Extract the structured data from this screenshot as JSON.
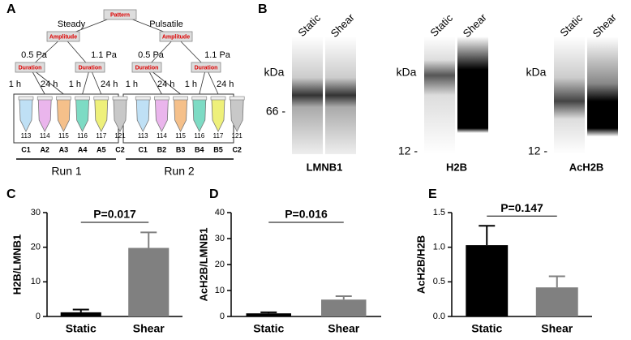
{
  "panels": [
    "A",
    "B",
    "C",
    "D",
    "E"
  ],
  "diagram": {
    "root": "Pattern",
    "branches": [
      "Steady",
      "Pulsatile"
    ],
    "amplitude": "Amplitude",
    "duration": "Duration",
    "pressures": [
      "0.5 Pa",
      "1.1 Pa",
      "0.5 Pa",
      "1.1 Pa"
    ],
    "times": [
      "1 h",
      "24 h",
      "1 h",
      "24 h",
      "1 h",
      "24 h",
      "1 h",
      "24 h"
    ],
    "tags": [
      "113",
      "114",
      "115",
      "116",
      "117",
      "121",
      "113",
      "114",
      "115",
      "116",
      "117",
      "121"
    ],
    "samples": [
      "C1",
      "A2",
      "A3",
      "A4",
      "A5",
      "C2",
      "C1",
      "B2",
      "B3",
      "B4",
      "B5",
      "C2"
    ],
    "runs": [
      "Run 1",
      "Run 2"
    ]
  },
  "blots": [
    {
      "name": "LMNB1",
      "lanes": [
        "Static",
        "Shear"
      ],
      "unit": "kDa",
      "marker": {
        "value": 66,
        "label": "66 -"
      }
    },
    {
      "name": "H2B",
      "lanes": [
        "Static",
        "Shear"
      ],
      "unit": "kDa",
      "marker": {
        "value": 12,
        "label": "12 -"
      }
    },
    {
      "name": "AcH2B",
      "lanes": [
        "Static",
        "Shear"
      ],
      "unit": "kDa",
      "marker": {
        "value": 12,
        "label": "12 -"
      }
    }
  ],
  "chart_data": [
    {
      "type": "bar",
      "ylabel": "H2B/LMNB1",
      "categories": [
        "Static",
        "Shear"
      ],
      "values": [
        1.2,
        19.8
      ],
      "errors": [
        0.8,
        4.5
      ],
      "colors": [
        "#000000",
        "#808080"
      ],
      "ylim": [
        0,
        30
      ],
      "yticks": [
        0,
        10,
        20,
        30
      ],
      "annotation": "P=0.017"
    },
    {
      "type": "bar",
      "ylabel": "AcH2B/LMNB1",
      "categories": [
        "Static",
        "Shear"
      ],
      "values": [
        1.2,
        6.5
      ],
      "errors": [
        0.4,
        1.3
      ],
      "colors": [
        "#000000",
        "#808080"
      ],
      "ylim": [
        0,
        40
      ],
      "yticks": [
        0,
        10,
        20,
        30,
        40
      ],
      "annotation": "P=0.016"
    },
    {
      "type": "bar",
      "ylabel": "AcH2B/H2B",
      "categories": [
        "Static",
        "Shear"
      ],
      "values": [
        1.03,
        0.42
      ],
      "errors": [
        0.28,
        0.16
      ],
      "colors": [
        "#000000",
        "#808080"
      ],
      "ylim": [
        0,
        1.5
      ],
      "yticks": [
        {
          "value": 0,
          "label": "0.0"
        },
        0.5,
        {
          "value": 1,
          "label": "1.0"
        },
        1.5
      ],
      "annotation": "P=0.147"
    }
  ]
}
